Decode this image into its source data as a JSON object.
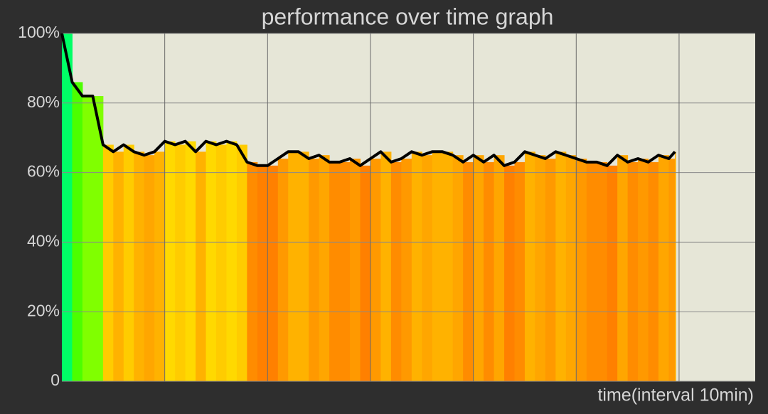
{
  "chart_data": {
    "type": "area-line",
    "title": "performance over time graph",
    "x_label": "time(interval 10min)",
    "x": [
      0,
      1,
      2,
      3,
      4,
      5,
      6,
      7,
      8,
      9,
      10,
      11,
      12,
      13,
      14,
      15,
      16,
      17,
      18,
      19,
      20,
      21,
      22,
      23,
      24,
      25,
      26,
      27,
      28,
      29,
      30,
      31,
      32,
      33,
      34,
      35,
      36,
      37,
      38,
      39,
      40,
      41,
      42,
      43,
      44,
      45,
      46,
      47,
      48,
      49,
      50,
      51,
      52,
      53,
      54,
      55,
      56,
      57,
      58,
      59,
      59.6
    ],
    "values": [
      100,
      86,
      82,
      82,
      68,
      66,
      68,
      66,
      65,
      66,
      69,
      68,
      69,
      66,
      69,
      68,
      69,
      68,
      63,
      62,
      62,
      64,
      66,
      66,
      64,
      65,
      63,
      63,
      64,
      62,
      64,
      66,
      63,
      64,
      66,
      65,
      66,
      66,
      65,
      63,
      65,
      63,
      65,
      62,
      63,
      66,
      65,
      64,
      66,
      65,
      64,
      63,
      63,
      62,
      65,
      63,
      64,
      63,
      65,
      64,
      66
    ],
    "line_color": "#000000",
    "xlim": [
      0,
      67.4
    ],
    "xticks": [
      10,
      20,
      30,
      40,
      50,
      60
    ],
    "ylim": [
      0,
      100
    ],
    "yticks": [
      0,
      {
        "value": 20,
        "label": "20%"
      },
      {
        "value": 40,
        "label": "40%"
      },
      {
        "value": 60,
        "label": "60%"
      },
      {
        "value": 80,
        "label": "80%"
      },
      {
        "value": 100,
        "label": "100%"
      }
    ],
    "grid": true
  }
}
